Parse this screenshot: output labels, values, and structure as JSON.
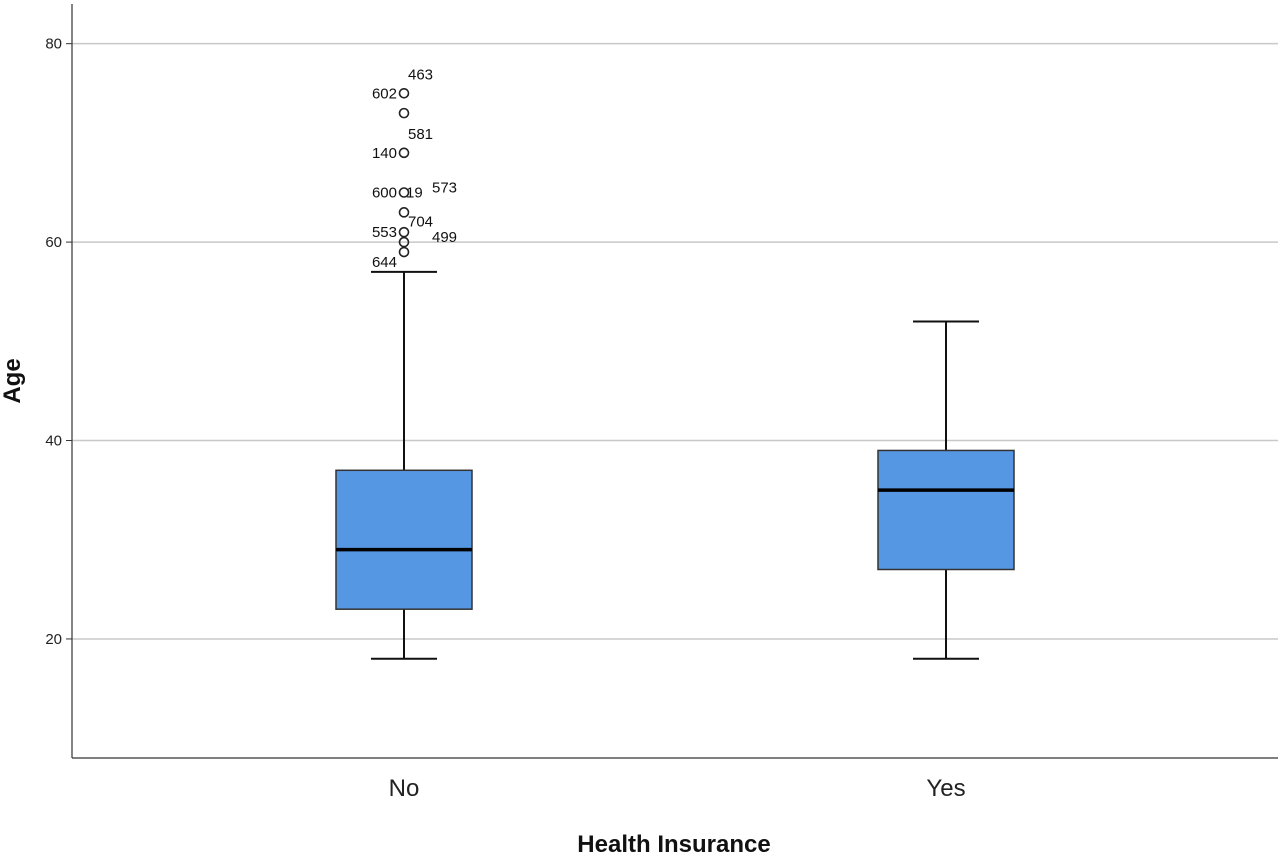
{
  "chart_data": {
    "type": "boxplot",
    "xlabel": "Health Insurance",
    "ylabel": "Age",
    "ylim": [
      8,
      84
    ],
    "yticks": [
      20,
      40,
      60,
      80
    ],
    "grid": true,
    "box_color": "#5597e3",
    "categories": [
      "No",
      "Yes"
    ],
    "boxes": [
      {
        "category": "No",
        "min": 18,
        "q1": 23,
        "median": 29,
        "q3": 37,
        "max": 57,
        "outliers": [
          {
            "value": 75,
            "labels": [
              {
                "text": "602",
                "side": "left"
              },
              {
                "text": "463",
                "side": "right-up"
              }
            ]
          },
          {
            "value": 73,
            "labels": []
          },
          {
            "value": 69,
            "labels": [
              {
                "text": "581",
                "side": "right-up"
              },
              {
                "text": "140",
                "side": "left"
              }
            ]
          },
          {
            "value": 65,
            "labels": [
              {
                "text": "600",
                "side": "left"
              },
              {
                "text": "19",
                "side": "right"
              },
              {
                "text": "573",
                "side": "right-far"
              }
            ]
          },
          {
            "value": 63,
            "labels": [
              {
                "text": "704",
                "side": "right-down"
              }
            ]
          },
          {
            "value": 61,
            "labels": [
              {
                "text": "553",
                "side": "left"
              }
            ]
          },
          {
            "value": 60,
            "labels": [
              {
                "text": "499",
                "side": "right-far"
              }
            ]
          },
          {
            "value": 59,
            "labels": [
              {
                "text": "644",
                "side": "left-down"
              }
            ]
          }
        ]
      },
      {
        "category": "Yes",
        "min": 18,
        "q1": 27,
        "median": 35,
        "q3": 39,
        "max": 52,
        "outliers": []
      }
    ]
  }
}
